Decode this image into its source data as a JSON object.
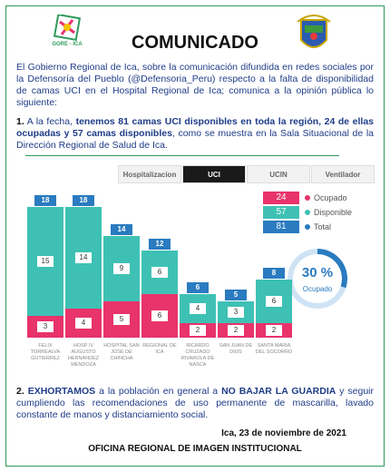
{
  "header": {
    "title": "COMUNICADO",
    "logo_text": "GORE - ICA"
  },
  "intro": "El Gobierno Regional de Ica, sobre la comunicación difundida en redes sociales por la Defensoría del Pueblo (@Defensoria_Peru) respecto a la falta de disponibilidad de camas UCI en el Hospital Regional de Ica; comunica a la opinión pública lo siguiente:",
  "point1": {
    "number": "1.",
    "text_1": "A la fecha, ",
    "bold": "tenemos 81 camas UCI disponibles en toda la región, 24 de ellas ocupadas y 57 camas disponibles",
    "text_2": ", como se muestra en la Sala Situacional de la Dirección Regional de Salud de Ica."
  },
  "tabs": [
    "Hospitalizacion",
    "UCI",
    "UCIN",
    "Ventilador"
  ],
  "chart_data": {
    "type": "bar",
    "stacked": true,
    "categories": [
      "FELIX TORREALVA GUTIERREZ",
      "HOSP IV AUGUSTO HERNANDEZ MENDOZA",
      "HOSPITAL SAN JOSE DE CHINCHA",
      "REGIONAL DE ICA",
      "RICARDO CRUZADO RIVAROLA DE NASCA",
      "SAN JUAN DE DIOS",
      "SANTA MARIA DEL SOCORRO"
    ],
    "series": [
      {
        "name": "Ocupado",
        "color": "#e8336b",
        "values": [
          3,
          4,
          5,
          6,
          2,
          2,
          2
        ]
      },
      {
        "name": "Disponible",
        "color": "#3ec1b4",
        "values": [
          15,
          14,
          9,
          6,
          4,
          3,
          6
        ]
      }
    ],
    "totals": {
      "name": "Total",
      "color": "#2a7bc0",
      "values": [
        18,
        18,
        14,
        12,
        6,
        5,
        8
      ]
    },
    "summary_values": [
      24,
      57,
      81
    ],
    "donut": {
      "value": 30,
      "label": "30 %"
    }
  },
  "point2": {
    "number": "2.",
    "bold_1": "EXHORTAMOS",
    "text_1": " a la población en general a ",
    "bold_2": "NO BAJAR LA GUARDIA",
    "text_2": " y seguir cumpliendo las recomendaciones de uso permanente de mascarilla, lavado constante de manos y distanciamiento social."
  },
  "date": "Ica, 23 de noviembre de 2021",
  "footer": "OFICINA REGIONAL DE IMAGEN INSTITUCIONAL"
}
